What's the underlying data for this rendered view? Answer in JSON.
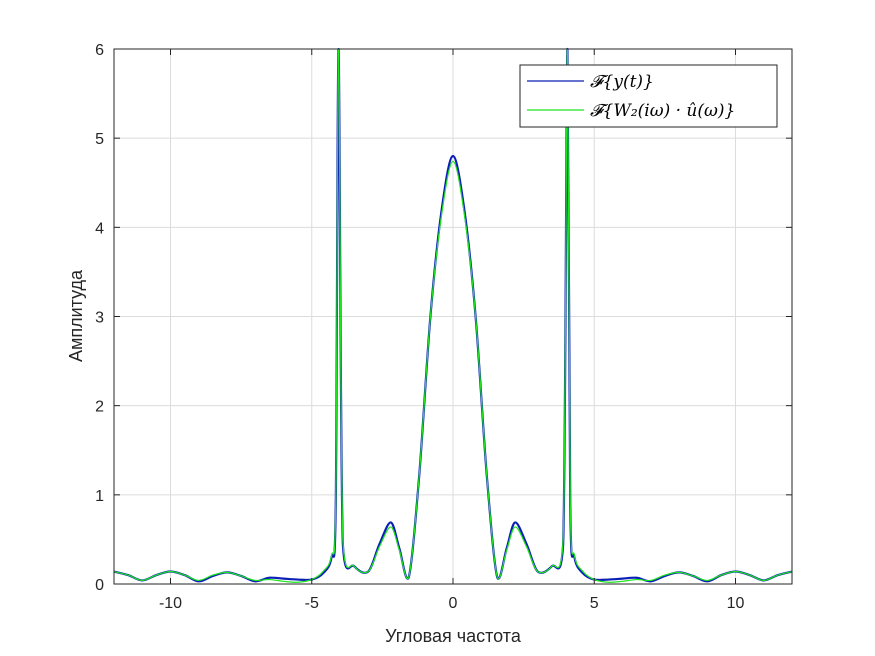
{
  "chart_data": {
    "type": "line",
    "title": "",
    "xlabel": "Угловая частота",
    "ylabel": "Амплитуда",
    "xlim": [
      -12,
      12
    ],
    "ylim": [
      0,
      6
    ],
    "xticks": [
      -10,
      -5,
      0,
      5,
      10
    ],
    "xtick_labels": [
      "-10",
      "-5",
      "0",
      "5",
      "10"
    ],
    "yticks": [
      0,
      1,
      2,
      3,
      4,
      5,
      6
    ],
    "ytick_labels": [
      "0",
      "1",
      "2",
      "3",
      "4",
      "5",
      "6"
    ],
    "grid": true,
    "legend_position": "top-right",
    "series": [
      {
        "name": "𝓕{y(t)}",
        "color": "#0a1fb5",
        "x": [
          -12,
          -11.5,
          -11,
          -10.5,
          -10,
          -9.5,
          -9,
          -8.5,
          -8,
          -7.5,
          -7,
          -6.5,
          -6,
          -5.5,
          -5,
          -4.6,
          -4.3,
          -4.15,
          -4.05,
          -3.9,
          -3.5,
          -3,
          -2.6,
          -2.2,
          -1.9,
          -1.57,
          -1.2,
          -0.8,
          -0.4,
          0,
          0.4,
          0.8,
          1.2,
          1.57,
          1.9,
          2.2,
          2.6,
          3,
          3.5,
          3.9,
          4.05,
          4.15,
          4.3,
          4.6,
          5,
          5.5,
          6,
          6.5,
          7,
          7.5,
          8,
          8.5,
          9,
          9.5,
          10,
          10.5,
          11,
          11.5,
          12
        ],
        "y": [
          0.14,
          0.1,
          0.04,
          0.1,
          0.14,
          0.1,
          0.03,
          0.09,
          0.13,
          0.09,
          0.03,
          0.07,
          0.06,
          0.05,
          0.05,
          0.12,
          0.3,
          0.9,
          6.0,
          0.45,
          0.2,
          0.14,
          0.45,
          0.69,
          0.4,
          0.07,
          1.2,
          3.0,
          4.2,
          4.8,
          4.2,
          3.0,
          1.2,
          0.07,
          0.4,
          0.69,
          0.45,
          0.14,
          0.2,
          0.45,
          6.0,
          0.9,
          0.3,
          0.12,
          0.05,
          0.05,
          0.06,
          0.07,
          0.03,
          0.09,
          0.13,
          0.09,
          0.03,
          0.1,
          0.14,
          0.1,
          0.04,
          0.1,
          0.14
        ]
      },
      {
        "name": "𝓕{W₂(iω) · û(ω)}",
        "color": "#1ee41e",
        "x": [
          -12,
          -11.5,
          -11,
          -10.5,
          -10,
          -9.5,
          -9,
          -8.5,
          -8,
          -7.5,
          -7,
          -6.5,
          -6,
          -5.5,
          -5,
          -4.6,
          -4.3,
          -4.15,
          -4.05,
          -3.9,
          -3.5,
          -3,
          -2.6,
          -2.2,
          -1.9,
          -1.57,
          -1.2,
          -0.8,
          -0.4,
          0,
          0.4,
          0.8,
          1.2,
          1.57,
          1.9,
          2.2,
          2.6,
          3,
          3.5,
          3.9,
          4.05,
          4.15,
          4.3,
          4.6,
          5,
          5.5,
          6,
          6.5,
          7,
          7.5,
          8,
          8.5,
          9,
          9.5,
          10,
          10.5,
          11,
          11.5,
          12
        ],
        "y": [
          0.14,
          0.1,
          0.04,
          0.1,
          0.14,
          0.1,
          0.04,
          0.1,
          0.13,
          0.09,
          0.04,
          0.05,
          0.03,
          0.02,
          0.05,
          0.14,
          0.32,
          0.95,
          6.0,
          0.5,
          0.2,
          0.14,
          0.42,
          0.64,
          0.38,
          0.07,
          1.2,
          3.0,
          4.15,
          4.74,
          4.15,
          3.0,
          1.2,
          0.07,
          0.38,
          0.64,
          0.42,
          0.14,
          0.2,
          0.5,
          6.0,
          0.95,
          0.32,
          0.14,
          0.05,
          0.02,
          0.03,
          0.05,
          0.04,
          0.1,
          0.13,
          0.09,
          0.04,
          0.1,
          0.14,
          0.1,
          0.04,
          0.1,
          0.14
        ]
      }
    ]
  }
}
